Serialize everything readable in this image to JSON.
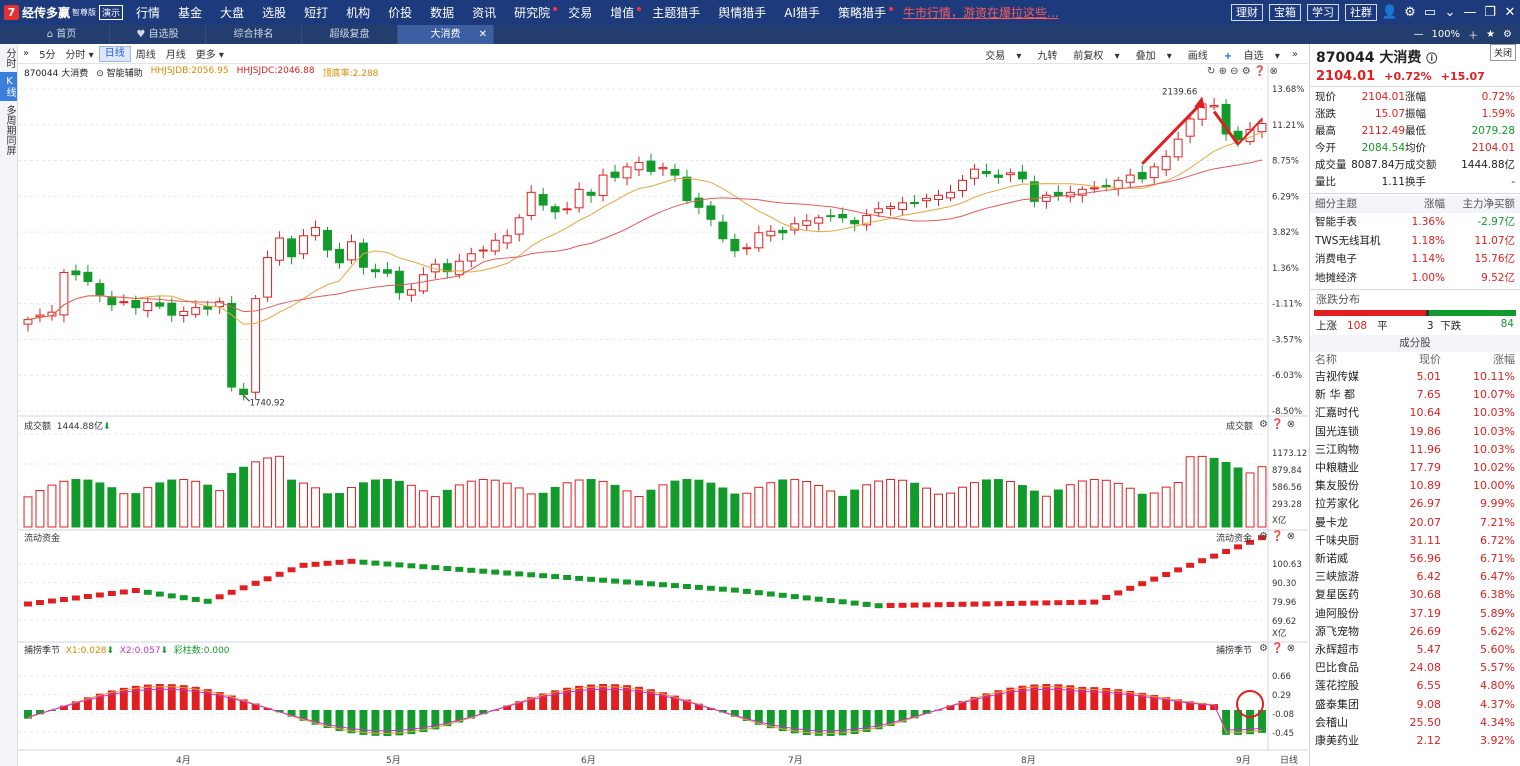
{
  "app": {
    "logo_mark": "7",
    "logo_name": "经传多赢",
    "edition": "智尊版",
    "demo": "演示"
  },
  "menu": [
    "行情",
    "基金",
    "大盘",
    "选股",
    "短打",
    "机构",
    "价投",
    "数据",
    "资讯",
    "研究院",
    "交易",
    "增值",
    "主题猎手",
    "舆情猎手",
    "AI猎手",
    "策略猎手"
  ],
  "menu_dots": [
    9,
    11,
    15
  ],
  "marquee": "牛市行情，游资在爆拉这些...",
  "top_buttons": [
    "理财",
    "宝箱",
    "学习",
    "社群"
  ],
  "tabs": [
    {
      "icon": "home-icon",
      "label": "首页"
    },
    {
      "icon": "heart-icon",
      "label": "自选股"
    },
    {
      "label": "综合排名"
    },
    {
      "label": "超级复盘"
    },
    {
      "label": "大消费",
      "active": true
    }
  ],
  "zoom": "100%",
  "tooltip": "关闭",
  "leftnav": [
    "分时",
    "K线",
    "多周期同屏"
  ],
  "toolbar": {
    "periods": [
      "5分",
      "分时",
      "日线",
      "周线",
      "月线",
      "更多"
    ],
    "active": "日线",
    "right": [
      "交易",
      "九转",
      "前复权",
      "叠加",
      "画线",
      "自选"
    ]
  },
  "main": {
    "code_name": "870044 大消费",
    "assist": "智能辅助",
    "ind1": "HHJSJDB:2056.95",
    "ind2": "HHJSJDC:2046.88",
    "ind3": "顶底率:2.288",
    "high_label": "2139.66",
    "low_label": "1740.92",
    "yaxis": [
      "13.68%",
      "11.21%",
      "8.75%",
      "6.29%",
      "3.82%",
      "1.36%",
      "-1.11%",
      "-3.57%",
      "-6.03%",
      "-8.50%"
    ]
  },
  "volume": {
    "title": "成交额",
    "value": "1444.88亿",
    "label_r": "成交额",
    "yaxis": [
      "1173.12",
      "879.84",
      "586.56",
      "293.28"
    ],
    "unit": "X亿"
  },
  "flow": {
    "title": "流动资金",
    "label_r": "流动资金",
    "yaxis": [
      "100.63",
      "90.30",
      "79.96",
      "69.62"
    ],
    "unit": "X亿"
  },
  "season": {
    "title": "捕捞季节",
    "x1": "X1:0.028",
    "x2": "X2:0.057",
    "bars": "彩柱数:0.000",
    "label_r": "捕捞季节",
    "yaxis": [
      "0.66",
      "0.29",
      "-0.08",
      "-0.45"
    ]
  },
  "xaxis": {
    "months": [
      "4月",
      "5月",
      "6月",
      "7月",
      "8月",
      "9月"
    ],
    "period": "日线"
  },
  "quote": {
    "code": "870044 大消费",
    "price": "2104.01",
    "chg_pct": "+0.72%",
    "chg": "+15.07",
    "rows": [
      [
        "现价",
        "2104.01",
        "涨幅",
        "0.72%"
      ],
      [
        "涨跌",
        "15.07",
        "振幅",
        "1.59%"
      ],
      [
        "最高",
        "2112.49",
        "最低",
        "2079.28"
      ],
      [
        "今开",
        "2084.54",
        "均价",
        "2104.01"
      ],
      [
        "成交量",
        "8087.84万",
        "成交额",
        "1444.88亿"
      ],
      [
        "量比",
        "1.11",
        "换手",
        "-"
      ]
    ]
  },
  "themes": {
    "headers": [
      "细分主题",
      "涨幅",
      "主力净买额"
    ],
    "rows": [
      [
        "智能手表",
        "1.36%",
        "-2.97亿"
      ],
      [
        "TWS无线耳机",
        "1.18%",
        "11.07亿"
      ],
      [
        "消费电子",
        "1.14%",
        "15.76亿"
      ],
      [
        "地摊经济",
        "1.00%",
        "9.52亿"
      ]
    ]
  },
  "distribution": {
    "title": "涨跌分布",
    "up_label": "上涨",
    "up": "108",
    "flat_label": "平",
    "flat": "3",
    "down_label": "下跌",
    "down": "84"
  },
  "constituents": {
    "title": "成分股",
    "headers": [
      "名称",
      "现价",
      "涨幅"
    ],
    "rows": [
      [
        "吉视传媒",
        "5.01",
        "10.11%"
      ],
      [
        "新 华 都",
        "7.65",
        "10.07%"
      ],
      [
        "汇嘉时代",
        "10.64",
        "10.03%"
      ],
      [
        "国光连锁",
        "19.86",
        "10.03%"
      ],
      [
        "三江购物",
        "11.96",
        "10.03%"
      ],
      [
        "中粮糖业",
        "17.79",
        "10.02%"
      ],
      [
        "集友股份",
        "10.89",
        "10.00%"
      ],
      [
        "拉芳家化",
        "26.97",
        "9.99%"
      ],
      [
        "曼卡龙",
        "20.07",
        "7.21%"
      ],
      [
        "千味央厨",
        "31.11",
        "6.72%"
      ],
      [
        "新诺威",
        "56.96",
        "6.71%"
      ],
      [
        "三峡旅游",
        "6.42",
        "6.47%"
      ],
      [
        "复星医药",
        "30.68",
        "6.38%"
      ],
      [
        "迪阿股份",
        "37.19",
        "5.89%"
      ],
      [
        "源飞宠物",
        "26.69",
        "5.62%"
      ],
      [
        "永辉超市",
        "5.47",
        "5.60%"
      ],
      [
        "巴比食品",
        "24.08",
        "5.57%"
      ],
      [
        "莲花控股",
        "6.55",
        "4.80%"
      ],
      [
        "盛泰集团",
        "9.08",
        "4.37%"
      ],
      [
        "会稽山",
        "25.50",
        "4.34%"
      ],
      [
        "康美药业",
        "2.12",
        "3.92%"
      ]
    ]
  },
  "colors": {
    "up": "#e02020",
    "down": "#129a2a",
    "nav": "#1c3a7c"
  }
}
